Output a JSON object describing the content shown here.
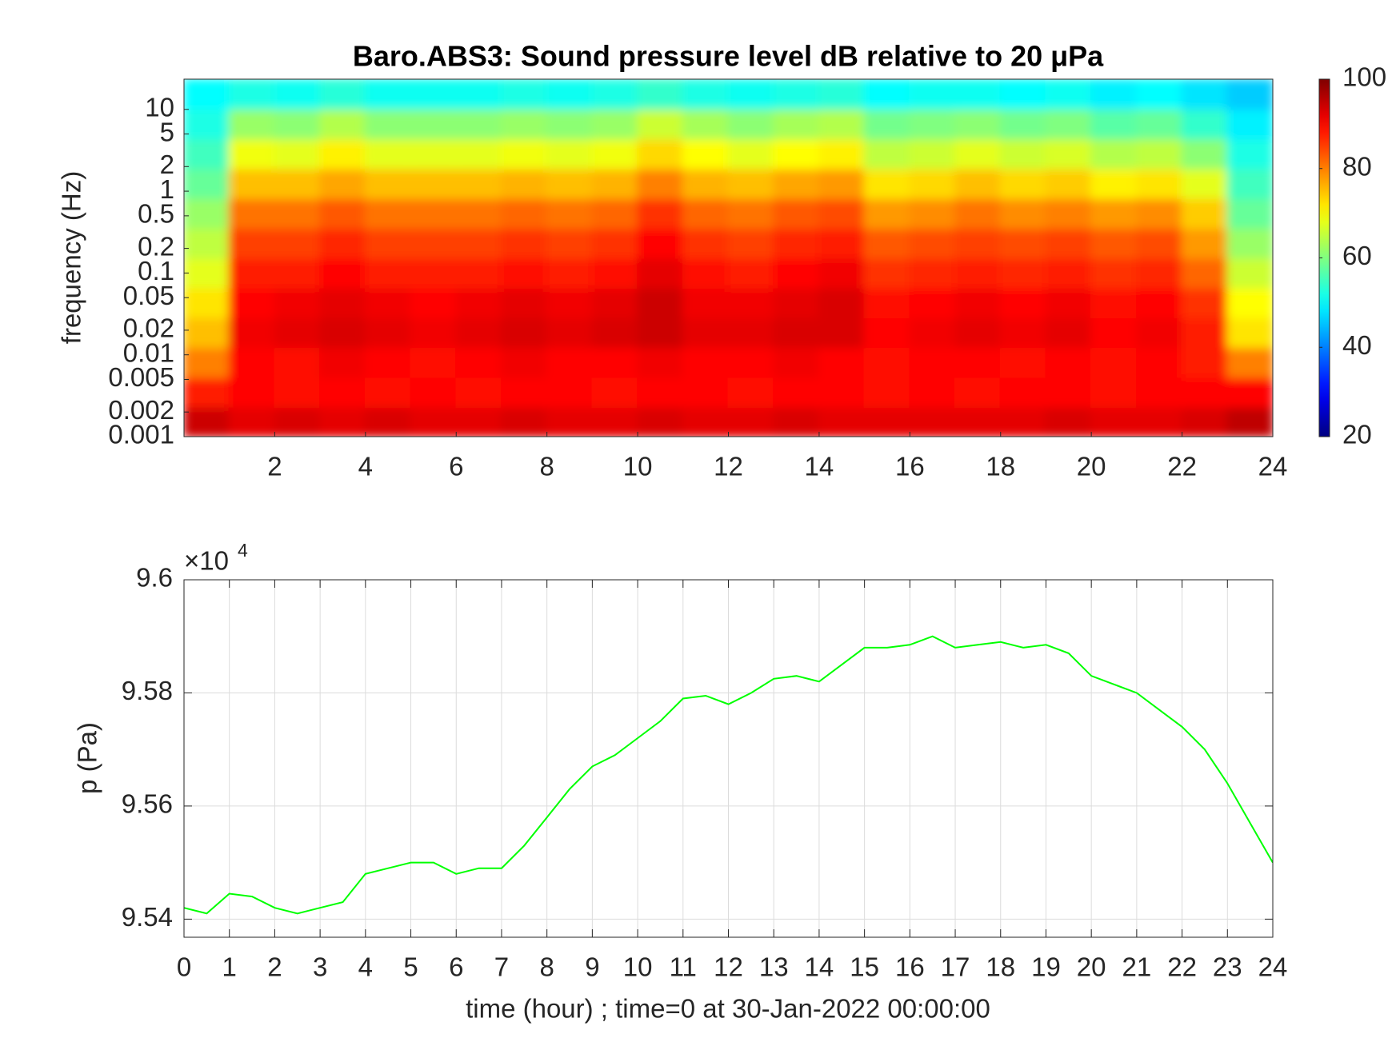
{
  "chart_data": [
    {
      "type": "heatmap",
      "title": "Baro.ABS3: Sound pressure level dB relative to 20 μPa",
      "ylabel": "frequency (Hz)",
      "yscale": "log",
      "xlim": [
        0,
        24
      ],
      "xticks": [
        2,
        4,
        6,
        8,
        10,
        12,
        14,
        16,
        18,
        20,
        22,
        24
      ],
      "ylim": [
        0.001,
        23.4
      ],
      "yticks": [
        0.001,
        0.002,
        0.005,
        0.01,
        0.02,
        0.05,
        0.1,
        0.2,
        0.5,
        1,
        2,
        5,
        10
      ],
      "clim": [
        20,
        100
      ],
      "cticks": [
        20,
        40,
        60,
        80,
        100
      ],
      "colormap": "jet",
      "x_edges": [
        0,
        1,
        2,
        3,
        4,
        5,
        6,
        7,
        8,
        9,
        10,
        11,
        12,
        13,
        14,
        15,
        16,
        17,
        18,
        19,
        20,
        21,
        22,
        23,
        24
      ],
      "y_edges": [
        0.001,
        0.00231,
        0.00535,
        0.0124,
        0.0286,
        0.0661,
        0.153,
        0.354,
        0.818,
        1.89,
        4.37,
        10.1,
        23.4
      ],
      "z": [
        [
          94,
          92,
          93,
          92,
          93,
          92,
          92,
          93,
          92,
          92,
          93,
          92,
          92,
          93,
          92,
          92,
          92,
          92,
          92,
          93,
          92,
          92,
          93,
          95
        ],
        [
          88,
          90,
          89,
          90,
          89,
          90,
          89,
          90,
          90,
          89,
          90,
          90,
          89,
          90,
          90,
          89,
          90,
          89,
          90,
          90,
          89,
          90,
          90,
          90
        ],
        [
          80,
          90,
          89,
          91,
          90,
          89,
          90,
          91,
          90,
          90,
          91,
          90,
          90,
          91,
          90,
          89,
          90,
          90,
          89,
          90,
          89,
          90,
          88,
          80
        ],
        [
          75,
          91,
          92,
          93,
          92,
          91,
          92,
          93,
          92,
          93,
          94,
          92,
          92,
          93,
          93,
          90,
          91,
          92,
          91,
          92,
          90,
          91,
          88,
          72
        ],
        [
          72,
          90,
          91,
          92,
          91,
          90,
          91,
          92,
          91,
          92,
          94,
          91,
          91,
          92,
          93,
          89,
          90,
          91,
          90,
          91,
          89,
          90,
          86,
          70
        ],
        [
          68,
          88,
          88,
          90,
          88,
          88,
          88,
          89,
          88,
          89,
          92,
          89,
          88,
          90,
          91,
          86,
          87,
          88,
          87,
          88,
          86,
          87,
          82,
          66
        ],
        [
          65,
          85,
          85,
          87,
          85,
          85,
          85,
          86,
          85,
          86,
          90,
          86,
          85,
          87,
          88,
          83,
          84,
          85,
          84,
          85,
          83,
          84,
          78,
          62
        ],
        [
          62,
          81,
          81,
          83,
          81,
          81,
          81,
          82,
          81,
          82,
          86,
          82,
          81,
          83,
          84,
          78,
          79,
          81,
          79,
          80,
          78,
          79,
          74,
          58
        ],
        [
          58,
          75,
          75,
          77,
          75,
          75,
          75,
          76,
          75,
          76,
          80,
          76,
          75,
          77,
          78,
          72,
          73,
          75,
          73,
          74,
          71,
          72,
          68,
          55
        ],
        [
          55,
          69,
          68,
          71,
          68,
          68,
          68,
          69,
          68,
          69,
          73,
          70,
          68,
          70,
          71,
          65,
          66,
          68,
          66,
          67,
          64,
          65,
          61,
          52
        ],
        [
          52,
          62,
          61,
          64,
          61,
          61,
          61,
          62,
          61,
          62,
          66,
          63,
          61,
          63,
          64,
          59,
          60,
          61,
          59,
          60,
          57,
          58,
          54,
          49
        ],
        [
          50,
          52,
          51,
          53,
          51,
          51,
          51,
          52,
          51,
          52,
          54,
          52,
          51,
          52,
          53,
          50,
          51,
          51,
          50,
          51,
          49,
          50,
          48,
          46
        ]
      ]
    },
    {
      "type": "line",
      "xlabel": "time (hour) ; time=0 at 30-Jan-2022 00:00:00",
      "ylabel": "p (Pa)",
      "y_multiplier": "×10",
      "y_multiplier_exponent": "4",
      "color": "#00ff00",
      "grid": true,
      "xlim": [
        0,
        24
      ],
      "xticks": [
        0,
        1,
        2,
        3,
        4,
        5,
        6,
        7,
        8,
        9,
        10,
        11,
        12,
        13,
        14,
        15,
        16,
        17,
        18,
        19,
        20,
        21,
        22,
        23,
        24
      ],
      "ylim": [
        95368,
        96000
      ],
      "yticks": [
        {
          "value": 95400,
          "label": "9.54"
        },
        {
          "value": 95600,
          "label": "9.56"
        },
        {
          "value": 95800,
          "label": "9.58"
        },
        {
          "value": 96000,
          "label": "9.6"
        }
      ],
      "x": [
        0,
        0.5,
        1,
        1.5,
        2,
        2.5,
        3,
        3.5,
        4,
        4.5,
        5,
        5.5,
        6,
        6.5,
        7,
        7.5,
        8,
        8.5,
        9,
        9.5,
        10,
        10.5,
        11,
        11.5,
        12,
        12.5,
        13,
        13.5,
        14,
        14.5,
        15,
        15.5,
        16,
        16.5,
        17,
        17.5,
        18,
        18.5,
        19,
        19.5,
        20,
        20.5,
        21,
        21.5,
        22,
        22.5,
        23,
        23.5,
        24
      ],
      "values": [
        95420,
        95410,
        95445,
        95440,
        95420,
        95410,
        95420,
        95430,
        95480,
        95490,
        95500,
        95500,
        95480,
        95490,
        95490,
        95530,
        95580,
        95630,
        95670,
        95690,
        95720,
        95750,
        95790,
        95795,
        95780,
        95800,
        95825,
        95830,
        95820,
        95850,
        95880,
        95880,
        95885,
        95900,
        95880,
        95885,
        95890,
        95880,
        95885,
        95870,
        95830,
        95815,
        95800,
        95770,
        95740,
        95700,
        95640,
        95570,
        95500
      ]
    }
  ]
}
